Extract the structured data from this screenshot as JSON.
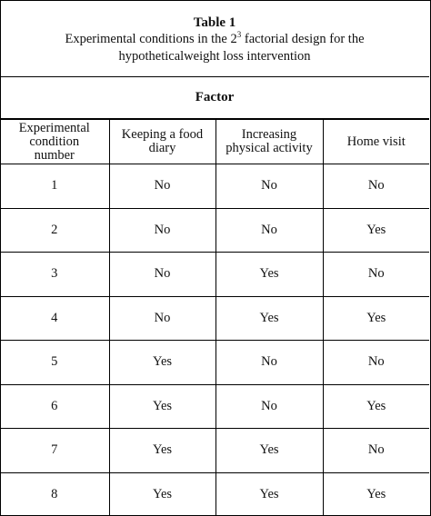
{
  "caption": {
    "title": "Table 1",
    "line1_prefix": "Experimental conditions in the 2",
    "line1_sup": "3",
    "line1_suffix": " factorial design for the",
    "line2": "hypotheticalweight loss intervention"
  },
  "factor_label": "Factor",
  "columns": [
    [
      "Experimental",
      "condition",
      "number"
    ],
    [
      "Keeping a food",
      "diary"
    ],
    [
      "Increasing",
      "physical activity"
    ],
    [
      "Home visit"
    ]
  ],
  "rows": [
    [
      "1",
      "No",
      "No",
      "No"
    ],
    [
      "2",
      "No",
      "No",
      "Yes"
    ],
    [
      "3",
      "No",
      "Yes",
      "No"
    ],
    [
      "4",
      "No",
      "Yes",
      "Yes"
    ],
    [
      "5",
      "Yes",
      "No",
      "No"
    ],
    [
      "6",
      "Yes",
      "No",
      "Yes"
    ],
    [
      "7",
      "Yes",
      "Yes",
      "No"
    ],
    [
      "8",
      "Yes",
      "Yes",
      "Yes"
    ]
  ]
}
